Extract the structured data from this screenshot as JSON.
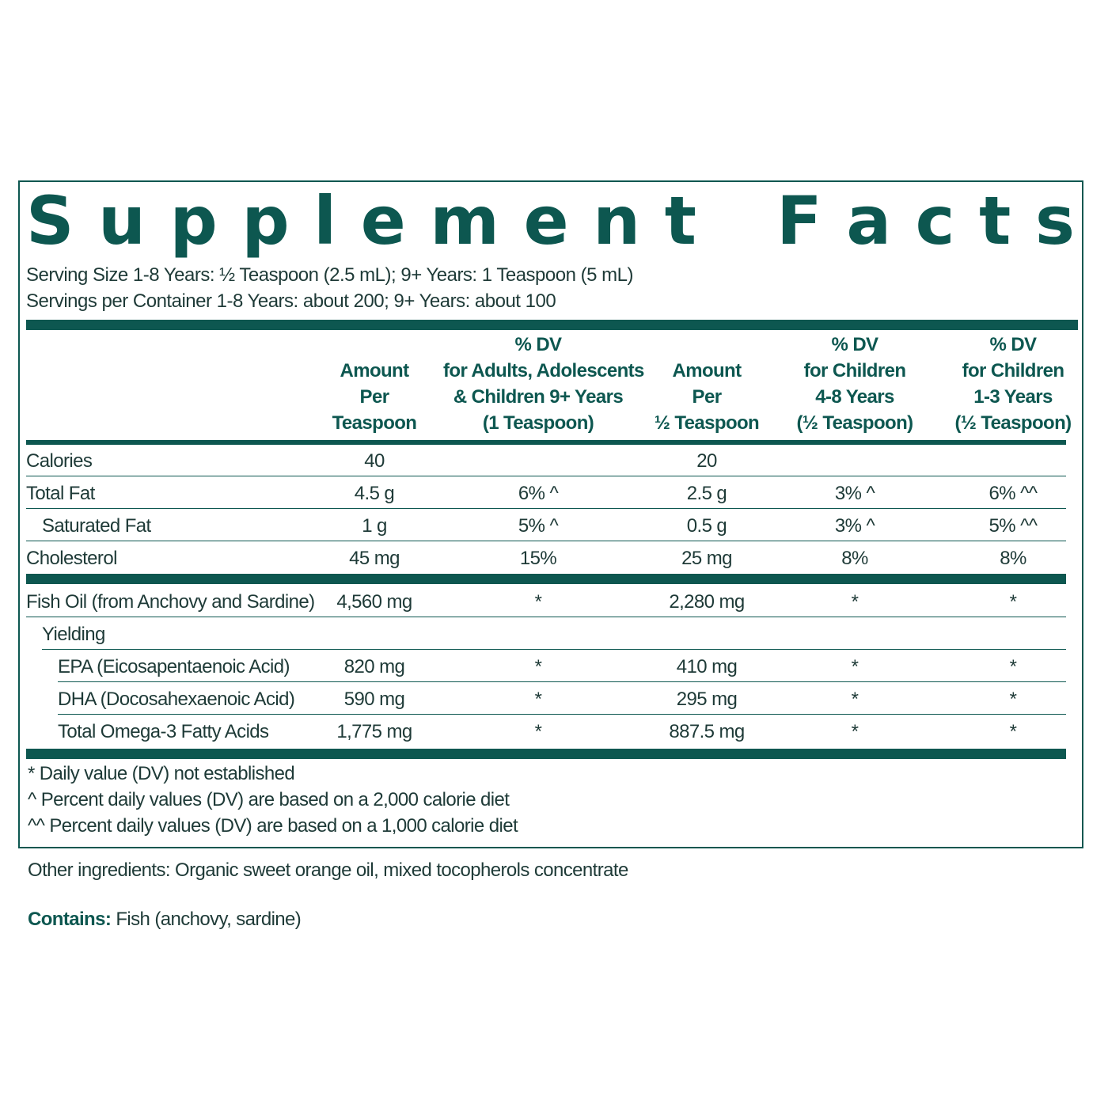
{
  "title_letters": [
    "S",
    "u",
    "p",
    "p",
    "l",
    "e",
    "m",
    "e",
    "n",
    "t",
    " ",
    "F",
    "a",
    "c",
    "t",
    "s"
  ],
  "serving_size": "Serving Size 1-8 Years: ½ Teaspoon (2.5 mL); 9+ Years: 1 Teaspoon (5 mL)",
  "servings_per_container": "Servings per Container 1-8 Years: about 200; 9+ Years: about 100",
  "columns": [
    {
      "l1": "",
      "l2": "Amount",
      "l3": "Per",
      "l4": "Teaspoon"
    },
    {
      "l1": "% DV",
      "l2": "for Adults, Adolescents",
      "l3": "& Children 9+ Years",
      "l4": "(1 Teaspoon)"
    },
    {
      "l1": "",
      "l2": "Amount",
      "l3": "Per",
      "l4": "½ Teaspoon"
    },
    {
      "l1": "% DV",
      "l2": "for Children",
      "l3": "4-8 Years",
      "l4": "(½ Teaspoon)"
    },
    {
      "l1": "% DV",
      "l2": "for Children",
      "l3": "1-3 Years",
      "l4": "(½ Teaspoon)"
    }
  ],
  "rows": [
    {
      "name": "Calories",
      "values": [
        "40",
        "",
        "20",
        "",
        ""
      ]
    },
    {
      "name": "Total Fat",
      "values": [
        "4.5 g",
        "6% ^",
        "2.5 g",
        "3% ^",
        "6% ^^"
      ]
    },
    {
      "name": "Saturated Fat",
      "values": [
        "1 g",
        "5% ^",
        "0.5 g",
        "3% ^",
        "5% ^^"
      ]
    },
    {
      "name": "Cholesterol",
      "values": [
        "45 mg",
        "15%",
        "25 mg",
        "8%",
        "8%"
      ]
    },
    {
      "name": "Fish Oil (from Anchovy and Sardine)",
      "values": [
        "4,560 mg",
        "*",
        "2,280 mg",
        "*",
        "*"
      ]
    },
    {
      "name": "Yielding",
      "values": [
        "",
        "",
        "",
        "",
        ""
      ]
    },
    {
      "name": "EPA (Eicosapentaenoic Acid)",
      "values": [
        "820 mg",
        "*",
        "410 mg",
        "*",
        "*"
      ]
    },
    {
      "name": "DHA (Docosahexaenoic Acid)",
      "values": [
        "590 mg",
        "*",
        "295 mg",
        "*",
        "*"
      ]
    },
    {
      "name": "Total Omega-3 Fatty Acids",
      "values": [
        "1,775 mg",
        "*",
        "887.5 mg",
        "*",
        "*"
      ]
    }
  ],
  "footnotes": [
    "* Daily value (DV) not established",
    "^  Percent daily values (DV) are based on a 2,000 calorie diet",
    "^^ Percent daily values (DV) are based on a 1,000 calorie diet"
  ],
  "other_ingredients": "Other ingredients: Organic sweet orange oil, mixed tocopherols concentrate",
  "contains_label": "Contains:",
  "contains_text": " Fish (anchovy, sardine)",
  "colors": {
    "primary": "#0d5750",
    "text": "#1e3a37"
  }
}
